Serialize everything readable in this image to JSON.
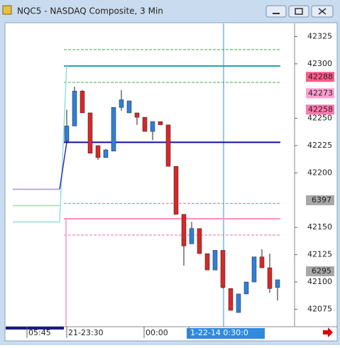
{
  "window_title": "NQC5 - NASDAQ Composite, 3 Min",
  "chart_data": {
    "type": "candlestick",
    "open": [
      42229,
      42243,
      42275,
      42255,
      42225,
      42214,
      42220,
      42260,
      42255,
      42255,
      42251,
      42238,
      42247,
      42244,
      42206,
      42162,
      42135,
      42149,
      42126,
      42111,
      42129,
      42094,
      42072,
      42089,
      42100,
      42123,
      42113,
      42095
    ],
    "high": [
      42258,
      42279,
      42276,
      42255,
      42225,
      42222,
      42260,
      42276,
      42266,
      42255,
      42251,
      42247,
      42247,
      42244,
      42206,
      42162,
      42155,
      42149,
      42126,
      42129,
      42129,
      42094,
      42089,
      42100,
      42123,
      42130,
      42126,
      42102
    ],
    "low": [
      42227,
      42243,
      42255,
      42218,
      42212,
      42214,
      42220,
      42257,
      42255,
      42244,
      42238,
      42230,
      42244,
      42206,
      42162,
      42115,
      42135,
      42126,
      42111,
      42111,
      42094,
      42074,
      42072,
      42089,
      42100,
      42113,
      42090,
      42083
    ],
    "close": [
      42243,
      42275,
      42255,
      42218,
      42214,
      42221,
      42260,
      42267,
      42266,
      42251,
      42238,
      42247,
      42244,
      42206,
      42162,
      42133,
      42149,
      42126,
      42111,
      42129,
      42095,
      42074,
      42089,
      42100,
      42123,
      42113,
      42094,
      42102
    ],
    "up_color": "#2f7fd8",
    "down_color": "#d62828",
    "ylim": [
      42059,
      42337
    ],
    "yticks": [
      42075,
      42100,
      42125,
      42150,
      42200,
      42225,
      42250,
      42300,
      42325
    ],
    "levels": [
      {
        "value": 42313,
        "color": "#3cb043",
        "dashed": true
      },
      {
        "value": 42298,
        "color": "#1aa3a3",
        "dashed": false
      },
      {
        "value": 42283,
        "color": "#3cb043",
        "dashed": true
      },
      {
        "value": 42228,
        "color": "#1010a0",
        "dashed": false
      },
      {
        "value": 42172,
        "color": "#e070b0",
        "dashed": true
      },
      {
        "value": 42158,
        "color": "#ff90c0",
        "dashed": false
      },
      {
        "value": 42143,
        "color": "#e070b0",
        "dashed": true
      }
    ],
    "prior_levels": [
      {
        "value": 42185,
        "color": "#9a9af0"
      },
      {
        "value": 42170,
        "color": "#a0e0a0"
      },
      {
        "value": 42155,
        "color": "#90e0e0"
      }
    ],
    "price_markers": [
      {
        "value": 42288,
        "label": "42288",
        "color": "#ff5a8a"
      },
      {
        "value": 42273,
        "label": "42273",
        "color": "#ffa0d0"
      },
      {
        "value": 42258,
        "label": "42258",
        "color": "#ff7ab0"
      }
    ],
    "other_markers": [
      "6397",
      "6295"
    ],
    "time_labels": [
      "05:45",
      "21-23:30",
      "00:00",
      "1-22-14  0:30:0"
    ]
  }
}
